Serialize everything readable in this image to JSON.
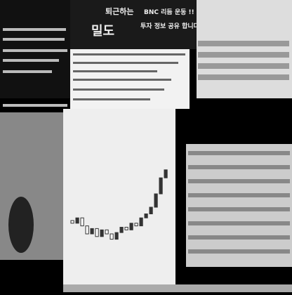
{
  "banner": {
    "left": "퇴근하는",
    "brand": "밀도",
    "right": "BNC 리듬 운동 !!",
    "right2": "투자 정보 공유 합니다"
  },
  "candles": {
    "ylim": [
      0,
      100
    ],
    "open": [
      40,
      38,
      42,
      36,
      30,
      34,
      28,
      33,
      30,
      26,
      31,
      35,
      33,
      38,
      36,
      42,
      45,
      50,
      60,
      72
    ],
    "close": [
      38,
      42,
      36,
      30,
      34,
      28,
      33,
      30,
      26,
      31,
      35,
      33,
      38,
      36,
      42,
      45,
      50,
      60,
      72,
      78
    ]
  }
}
